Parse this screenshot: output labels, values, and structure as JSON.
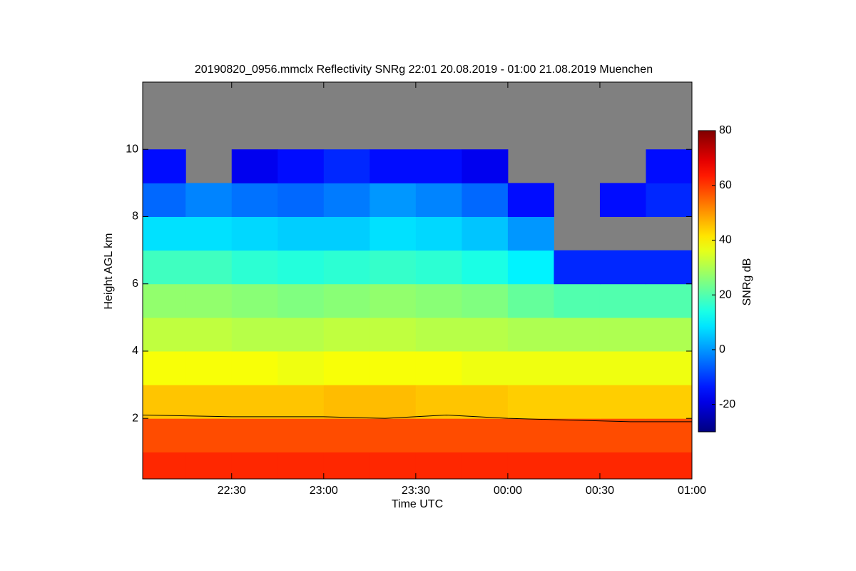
{
  "chart_data": {
    "type": "heatmap",
    "title": "20190820_0956.mmclx Reflectivity SNRg   22:01 20.08.2019 - 01:00 21.08.2019 Muenchen",
    "x_label": "Time UTC",
    "y_label": "Height AGL km",
    "colorbar_label": "SNRg dB",
    "xlim": [
      "22:01",
      "01:00"
    ],
    "xticks": [
      "22:30",
      "23:00",
      "23:30",
      "00:00",
      "00:30",
      "01:00"
    ],
    "ylim": [
      0.2,
      12
    ],
    "yticks": [
      2,
      4,
      6,
      8,
      10
    ],
    "zlim": [
      -30,
      80
    ],
    "zticks": [
      -20,
      0,
      20,
      40,
      60,
      80
    ],
    "colormap": "jet",
    "missing_color": "#808080",
    "x_bins": [
      "22:01",
      "22:15",
      "22:30",
      "22:45",
      "23:00",
      "23:15",
      "23:30",
      "23:45",
      "00:00",
      "00:15",
      "00:30",
      "00:45",
      "01:00"
    ],
    "y_bins": [
      0.2,
      1,
      2,
      3,
      4,
      5,
      6,
      7,
      8,
      9,
      10,
      11,
      12
    ],
    "z": [
      [
        62,
        62,
        62,
        62,
        62,
        62,
        62,
        62,
        62,
        62,
        62,
        62
      ],
      [
        58,
        58,
        58,
        58,
        58,
        58,
        58,
        58,
        58,
        58,
        58,
        58
      ],
      [
        45,
        45,
        45,
        45,
        46,
        46,
        45,
        45,
        44,
        44,
        44,
        44
      ],
      [
        38,
        38,
        38,
        37,
        38,
        38,
        38,
        37,
        37,
        37,
        37,
        37
      ],
      [
        32,
        32,
        31,
        31,
        32,
        32,
        31,
        31,
        30,
        30,
        30,
        30
      ],
      [
        27,
        27,
        26,
        25,
        26,
        27,
        26,
        25,
        22,
        20,
        20,
        20
      ],
      [
        18,
        18,
        16,
        15,
        16,
        17,
        16,
        14,
        10,
        -12,
        -12,
        -12
      ],
      [
        8,
        8,
        7,
        6,
        6,
        8,
        7,
        5,
        0,
        null,
        null,
        null
      ],
      [
        -5,
        -2,
        -4,
        -5,
        -3,
        0,
        -2,
        -5,
        -15,
        null,
        -15,
        -12
      ],
      [
        -15,
        null,
        -18,
        -15,
        -12,
        -15,
        -15,
        -18,
        null,
        null,
        null,
        -15
      ],
      [
        null,
        null,
        null,
        null,
        null,
        null,
        null,
        null,
        null,
        null,
        null,
        null
      ],
      [
        null,
        null,
        null,
        null,
        null,
        null,
        null,
        null,
        null,
        null,
        null,
        null
      ]
    ],
    "line": {
      "color": "#000000",
      "x": [
        "22:01",
        "22:30",
        "23:00",
        "23:20",
        "23:40",
        "00:00",
        "00:20",
        "00:40",
        "01:00"
      ],
      "values": [
        2.1,
        2.05,
        2.05,
        2.0,
        2.1,
        2.0,
        1.95,
        1.9,
        1.9
      ]
    }
  }
}
